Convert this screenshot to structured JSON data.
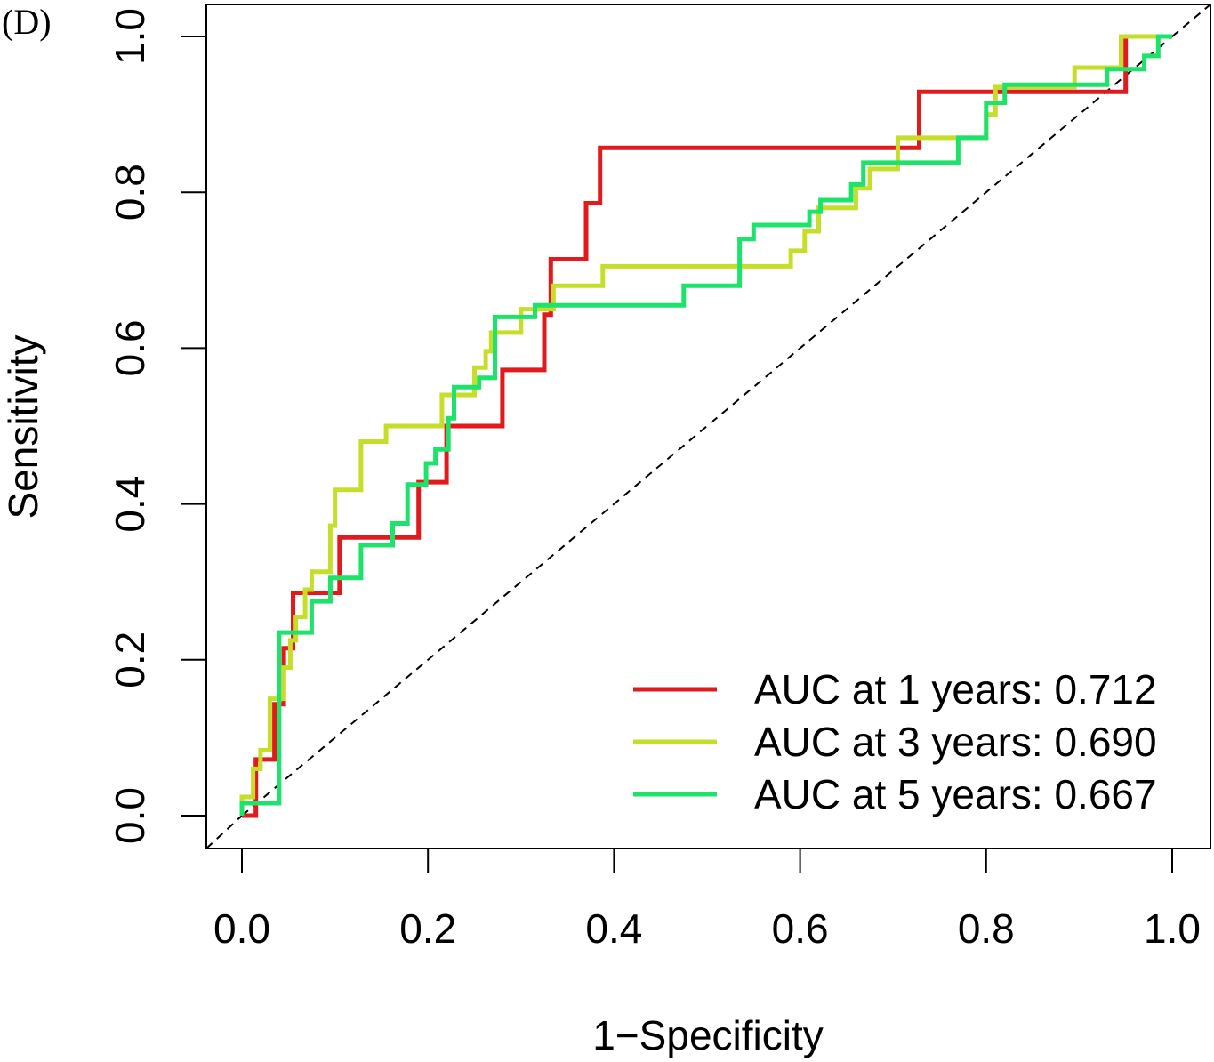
{
  "chart_data": {
    "type": "line",
    "panel_label": "(D)",
    "xlabel": "1−Specificity",
    "ylabel": "Sensitivity",
    "xlim": [
      0,
      1
    ],
    "ylim": [
      0,
      1
    ],
    "x_ticks": [
      "0.0",
      "0.2",
      "0.4",
      "0.6",
      "0.8",
      "1.0"
    ],
    "y_ticks": [
      "0.0",
      "0.2",
      "0.4",
      "0.6",
      "0.8",
      "1.0"
    ],
    "grid": false,
    "legend_position": "bottom-right",
    "reference_line": {
      "style": "dashed",
      "from": [
        0,
        0
      ],
      "to": [
        1,
        1
      ]
    },
    "series": [
      {
        "name": "AUC at 1 years: 0.712",
        "color": "#e31a1c",
        "points": [
          [
            0,
            0
          ],
          [
            0.015,
            0
          ],
          [
            0.015,
            0.072
          ],
          [
            0.035,
            0.072
          ],
          [
            0.035,
            0.143
          ],
          [
            0.045,
            0.143
          ],
          [
            0.045,
            0.215
          ],
          [
            0.055,
            0.215
          ],
          [
            0.055,
            0.286
          ],
          [
            0.105,
            0.286
          ],
          [
            0.105,
            0.357
          ],
          [
            0.19,
            0.357
          ],
          [
            0.19,
            0.428
          ],
          [
            0.22,
            0.428
          ],
          [
            0.22,
            0.5
          ],
          [
            0.28,
            0.5
          ],
          [
            0.28,
            0.572
          ],
          [
            0.325,
            0.572
          ],
          [
            0.325,
            0.643
          ],
          [
            0.332,
            0.643
          ],
          [
            0.332,
            0.714
          ],
          [
            0.37,
            0.714
          ],
          [
            0.37,
            0.786
          ],
          [
            0.385,
            0.786
          ],
          [
            0.385,
            0.857
          ],
          [
            0.728,
            0.857
          ],
          [
            0.728,
            0.929
          ],
          [
            0.95,
            0.929
          ],
          [
            0.95,
            1.0
          ],
          [
            1.0,
            1.0
          ]
        ]
      },
      {
        "name": "AUC at 3 years: 0.690",
        "color": "#c6de2a",
        "points": [
          [
            0,
            0
          ],
          [
            0,
            0.024
          ],
          [
            0.012,
            0.024
          ],
          [
            0.012,
            0.06
          ],
          [
            0.02,
            0.06
          ],
          [
            0.02,
            0.084
          ],
          [
            0.03,
            0.084
          ],
          [
            0.03,
            0.15
          ],
          [
            0.045,
            0.15
          ],
          [
            0.045,
            0.19
          ],
          [
            0.052,
            0.19
          ],
          [
            0.052,
            0.225
          ],
          [
            0.058,
            0.225
          ],
          [
            0.058,
            0.255
          ],
          [
            0.068,
            0.255
          ],
          [
            0.068,
            0.29
          ],
          [
            0.075,
            0.29
          ],
          [
            0.075,
            0.313
          ],
          [
            0.095,
            0.313
          ],
          [
            0.095,
            0.372
          ],
          [
            0.1,
            0.372
          ],
          [
            0.1,
            0.418
          ],
          [
            0.128,
            0.418
          ],
          [
            0.128,
            0.48
          ],
          [
            0.155,
            0.48
          ],
          [
            0.155,
            0.5
          ],
          [
            0.215,
            0.5
          ],
          [
            0.215,
            0.54
          ],
          [
            0.25,
            0.54
          ],
          [
            0.25,
            0.575
          ],
          [
            0.262,
            0.575
          ],
          [
            0.262,
            0.596
          ],
          [
            0.268,
            0.596
          ],
          [
            0.268,
            0.62
          ],
          [
            0.3,
            0.62
          ],
          [
            0.3,
            0.65
          ],
          [
            0.335,
            0.65
          ],
          [
            0.335,
            0.68
          ],
          [
            0.388,
            0.68
          ],
          [
            0.388,
            0.705
          ],
          [
            0.59,
            0.705
          ],
          [
            0.59,
            0.725
          ],
          [
            0.605,
            0.725
          ],
          [
            0.605,
            0.75
          ],
          [
            0.62,
            0.75
          ],
          [
            0.62,
            0.78
          ],
          [
            0.66,
            0.78
          ],
          [
            0.66,
            0.805
          ],
          [
            0.675,
            0.805
          ],
          [
            0.675,
            0.83
          ],
          [
            0.705,
            0.83
          ],
          [
            0.705,
            0.87
          ],
          [
            0.8,
            0.87
          ],
          [
            0.8,
            0.9
          ],
          [
            0.81,
            0.9
          ],
          [
            0.81,
            0.935
          ],
          [
            0.895,
            0.935
          ],
          [
            0.895,
            0.96
          ],
          [
            0.945,
            0.96
          ],
          [
            0.945,
            1.0
          ],
          [
            0.99,
            1.0
          ]
        ]
      },
      {
        "name": "AUC at 5 years: 0.667",
        "color": "#1ee36b",
        "points": [
          [
            0,
            0
          ],
          [
            0,
            0.016
          ],
          [
            0.04,
            0.016
          ],
          [
            0.04,
            0.235
          ],
          [
            0.075,
            0.235
          ],
          [
            0.075,
            0.275
          ],
          [
            0.095,
            0.275
          ],
          [
            0.095,
            0.305
          ],
          [
            0.128,
            0.305
          ],
          [
            0.128,
            0.347
          ],
          [
            0.162,
            0.347
          ],
          [
            0.162,
            0.375
          ],
          [
            0.178,
            0.375
          ],
          [
            0.178,
            0.425
          ],
          [
            0.198,
            0.425
          ],
          [
            0.198,
            0.452
          ],
          [
            0.208,
            0.452
          ],
          [
            0.208,
            0.47
          ],
          [
            0.222,
            0.47
          ],
          [
            0.222,
            0.51
          ],
          [
            0.228,
            0.51
          ],
          [
            0.228,
            0.55
          ],
          [
            0.255,
            0.55
          ],
          [
            0.255,
            0.562
          ],
          [
            0.272,
            0.562
          ],
          [
            0.272,
            0.64
          ],
          [
            0.315,
            0.64
          ],
          [
            0.315,
            0.655
          ],
          [
            0.475,
            0.655
          ],
          [
            0.475,
            0.68
          ],
          [
            0.535,
            0.68
          ],
          [
            0.535,
            0.74
          ],
          [
            0.55,
            0.74
          ],
          [
            0.55,
            0.758
          ],
          [
            0.61,
            0.758
          ],
          [
            0.61,
            0.775
          ],
          [
            0.622,
            0.775
          ],
          [
            0.622,
            0.79
          ],
          [
            0.655,
            0.79
          ],
          [
            0.655,
            0.81
          ],
          [
            0.668,
            0.81
          ],
          [
            0.668,
            0.838
          ],
          [
            0.77,
            0.838
          ],
          [
            0.77,
            0.87
          ],
          [
            0.8,
            0.87
          ],
          [
            0.8,
            0.915
          ],
          [
            0.82,
            0.915
          ],
          [
            0.82,
            0.938
          ],
          [
            0.93,
            0.938
          ],
          [
            0.93,
            0.958
          ],
          [
            0.97,
            0.958
          ],
          [
            0.97,
            0.975
          ],
          [
            0.985,
            0.975
          ],
          [
            0.985,
            1.0
          ],
          [
            1.0,
            1.0
          ]
        ]
      }
    ]
  }
}
